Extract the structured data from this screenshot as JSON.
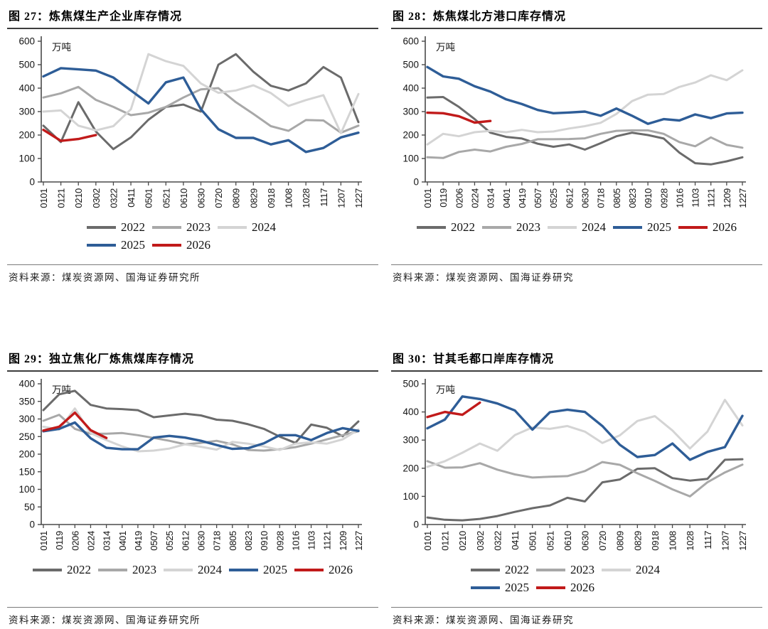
{
  "page": {
    "unit_label": "万吨"
  },
  "chart_data": [
    {
      "type": "line",
      "title": "图 27：炼焦煤生产企业库存情况",
      "source": "资料来源：煤炭资源网、国海证券研究所",
      "ylabel": "万吨",
      "y_min": 0,
      "y_max": 600,
      "y_step": 100,
      "grid": false,
      "legend_position": "bottom",
      "legend_layout": "two-row-left",
      "legend_rows": [
        [
          "2022",
          "2023",
          "2024"
        ],
        [
          "2025",
          "2026"
        ]
      ],
      "categories": [
        "0101",
        "0121",
        "0210",
        "0302",
        "0322",
        "0411",
        "0501",
        "0521",
        "0610",
        "0630",
        "0720",
        "0809",
        "0829",
        "0918",
        "1008",
        "1028",
        "1117",
        "1207",
        "1227"
      ],
      "series": [
        {
          "name": "2022",
          "color": "#6b6b6b",
          "values": [
            240,
            170,
            340,
            215,
            140,
            190,
            265,
            320,
            330,
            300,
            500,
            545,
            470,
            410,
            390,
            420,
            490,
            445,
            255
          ]
        },
        {
          "name": "2023",
          "color": "#a8a8a8",
          "values": [
            360,
            378,
            405,
            350,
            320,
            285,
            295,
            320,
            360,
            395,
            400,
            340,
            290,
            238,
            218,
            264,
            262,
            210,
            240
          ]
        },
        {
          "name": "2024",
          "color": "#d4d4d4",
          "values": [
            300,
            305,
            240,
            220,
            238,
            310,
            545,
            515,
            495,
            420,
            380,
            390,
            412,
            379,
            324,
            349,
            370,
            208,
            375
          ]
        },
        {
          "name": "2025",
          "color": "#2e5d97",
          "values": [
            450,
            485,
            480,
            475,
            445,
            390,
            335,
            425,
            445,
            310,
            225,
            188,
            188,
            160,
            178,
            128,
            145,
            190,
            210
          ]
        },
        {
          "name": "2026",
          "color": "#c11a1a",
          "values": [
            222,
            175,
            183,
            200
          ]
        }
      ]
    },
    {
      "type": "line",
      "title": "图 28：炼焦煤北方港口库存情况",
      "source": "资料来源：煤炭资源网、国海证券研究",
      "ylabel": "万吨",
      "y_min": 0,
      "y_max": 600,
      "y_step": 100,
      "grid": false,
      "legend_position": "bottom",
      "legend_layout": "one-row-center",
      "legend_rows": [
        [
          "2022",
          "2023",
          "2024",
          "2025",
          "2026"
        ]
      ],
      "categories": [
        "0101",
        "0119",
        "0206",
        "0224",
        "0314",
        "0401",
        "0419",
        "0507",
        "0525",
        "0612",
        "0630",
        "0718",
        "0805",
        "0823",
        "0910",
        "0928",
        "1016",
        "1103",
        "1121",
        "1209",
        "1227"
      ],
      "series": [
        {
          "name": "2022",
          "color": "#6b6b6b",
          "values": [
            360,
            362,
            320,
            268,
            210,
            192,
            185,
            163,
            150,
            160,
            138,
            165,
            195,
            210,
            200,
            185,
            125,
            80,
            75,
            88,
            105
          ]
        },
        {
          "name": "2023",
          "color": "#a8a8a8",
          "values": [
            105,
            102,
            128,
            138,
            130,
            150,
            162,
            182,
            182,
            183,
            186,
            205,
            218,
            220,
            220,
            205,
            170,
            152,
            190,
            158,
            146
          ]
        },
        {
          "name": "2024",
          "color": "#d4d4d4",
          "values": [
            160,
            205,
            195,
            212,
            218,
            212,
            222,
            212,
            215,
            228,
            238,
            252,
            290,
            345,
            372,
            375,
            405,
            424,
            455,
            434,
            476
          ]
        },
        {
          "name": "2025",
          "color": "#2e5d97",
          "values": [
            490,
            450,
            440,
            408,
            385,
            352,
            332,
            307,
            293,
            296,
            300,
            282,
            313,
            282,
            248,
            268,
            262,
            288,
            272,
            292,
            295
          ]
        },
        {
          "name": "2026",
          "color": "#c11a1a",
          "values": [
            295,
            293,
            280,
            253,
            260
          ]
        }
      ]
    },
    {
      "type": "line",
      "title": "图 29：独立焦化厂炼焦煤库存情况",
      "source": "资料来源：煤炭资源网、国海证券研究所",
      "ylabel": "万吨",
      "y_min": 0,
      "y_max": 400,
      "y_step": 50,
      "grid": false,
      "legend_position": "bottom",
      "legend_layout": "one-row-center",
      "legend_rows": [
        [
          "2022",
          "2023",
          "2024",
          "2025",
          "2026"
        ]
      ],
      "categories": [
        "0101",
        "0119",
        "0206",
        "0224",
        "0314",
        "0401",
        "0419",
        "0507",
        "0525",
        "0612",
        "0630",
        "0718",
        "0805",
        "0823",
        "0910",
        "0928",
        "1016",
        "1103",
        "1121",
        "1209",
        "1227"
      ],
      "series": [
        {
          "name": "2022",
          "color": "#6b6b6b",
          "values": [
            325,
            370,
            380,
            340,
            330,
            328,
            325,
            305,
            310,
            315,
            310,
            298,
            295,
            285,
            272,
            250,
            232,
            284,
            275,
            251,
            293
          ]
        },
        {
          "name": "2023",
          "color": "#a8a8a8",
          "values": [
            295,
            312,
            272,
            258,
            258,
            260,
            254,
            246,
            238,
            228,
            232,
            238,
            228,
            212,
            210,
            214,
            220,
            230,
            242,
            254,
            265
          ]
        },
        {
          "name": "2024",
          "color": "#d4d4d4",
          "values": [
            278,
            270,
            330,
            260,
            240,
            222,
            208,
            210,
            216,
            228,
            221,
            213,
            235,
            230,
            222,
            212,
            230,
            234,
            230,
            242,
            270
          ]
        },
        {
          "name": "2025",
          "color": "#2e5d97",
          "values": [
            265,
            272,
            290,
            245,
            218,
            214,
            214,
            247,
            252,
            247,
            238,
            226,
            215,
            217,
            231,
            254,
            254,
            240,
            260,
            274,
            266
          ]
        },
        {
          "name": "2026",
          "color": "#c11a1a",
          "values": [
            267,
            278,
            318,
            268,
            246
          ]
        }
      ]
    },
    {
      "type": "line",
      "title": "图 30：甘其毛都口岸库存情况",
      "source": "资料来源：煤炭资源网、国海证券研究",
      "ylabel": "万吨",
      "y_min": 0,
      "y_max": 500,
      "y_step": 100,
      "grid": false,
      "legend_position": "bottom",
      "legend_layout": "two-row-left",
      "legend_rows": [
        [
          "2022",
          "2023",
          "2024"
        ],
        [
          "2025",
          "2026"
        ]
      ],
      "categories": [
        "0101",
        "0121",
        "0210",
        "0302",
        "0322",
        "0411",
        "0501",
        "0521",
        "0610",
        "0630",
        "0720",
        "0809",
        "0829",
        "0918",
        "1008",
        "1028",
        "1117",
        "1207",
        "1227"
      ],
      "series": [
        {
          "name": "2022",
          "color": "#6b6b6b",
          "values": [
            25,
            17,
            15,
            20,
            30,
            45,
            58,
            68,
            95,
            82,
            150,
            160,
            198,
            200,
            165,
            156,
            162,
            230,
            232
          ]
        },
        {
          "name": "2023",
          "color": "#a8a8a8",
          "values": [
            225,
            202,
            203,
            218,
            195,
            178,
            167,
            170,
            172,
            190,
            222,
            212,
            182,
            155,
            125,
            100,
            150,
            185,
            213
          ]
        },
        {
          "name": "2024",
          "color": "#d4d4d4",
          "values": [
            205,
            225,
            255,
            288,
            262,
            318,
            345,
            340,
            350,
            330,
            290,
            317,
            368,
            385,
            334,
            270,
            330,
            443,
            352
          ]
        },
        {
          "name": "2025",
          "color": "#2e5d97",
          "values": [
            342,
            373,
            455,
            446,
            430,
            405,
            337,
            399,
            408,
            400,
            350,
            283,
            240,
            247,
            288,
            230,
            258,
            275,
            386
          ]
        },
        {
          "name": "2026",
          "color": "#c11a1a",
          "values": [
            382,
            400,
            390,
            433
          ]
        }
      ]
    }
  ]
}
